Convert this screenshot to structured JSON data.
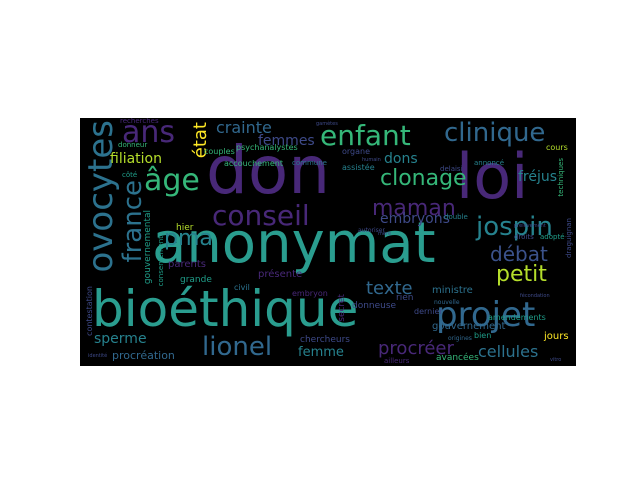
{
  "wordcloud": {
    "words": [
      {
        "id": "anonymat",
        "text": "anonymat",
        "color": "#2a9d8f"
      },
      {
        "id": "bioethique",
        "text": "bioéthique",
        "color": "#2a9d8f"
      },
      {
        "id": "don",
        "text": "don",
        "color": "#482878"
      },
      {
        "id": "loi",
        "text": "loi",
        "color": "#482878"
      },
      {
        "id": "ovocytes",
        "text": "ovocytes",
        "color": "#2c728e"
      },
      {
        "id": "ans",
        "text": "ans",
        "color": "#482878"
      },
      {
        "id": "enfant",
        "text": "enfant",
        "color": "#35b779"
      },
      {
        "id": "clinique",
        "text": "clinique",
        "color": "#31688e"
      },
      {
        "id": "conseil",
        "text": "conseil",
        "color": "#482878"
      },
      {
        "id": "age",
        "text": "âge",
        "color": "#35b779"
      },
      {
        "id": "france",
        "text": "france",
        "color": "#2c728e"
      },
      {
        "id": "clonage",
        "text": "clonage",
        "color": "#35b779"
      },
      {
        "id": "jospin",
        "text": "jospin",
        "color": "#26828e"
      },
      {
        "id": "projet",
        "text": "projet",
        "color": "#31688e"
      },
      {
        "id": "lionel",
        "text": "lionel",
        "color": "#31688e"
      },
      {
        "id": "maman",
        "text": "maman",
        "color": "#482878"
      },
      {
        "id": "petit",
        "text": "petit",
        "color": "#b5de2b"
      },
      {
        "id": "debat",
        "text": "débat",
        "color": "#3b528b"
      },
      {
        "id": "pma",
        "text": "pma",
        "color": "#26828e"
      },
      {
        "id": "etat",
        "text": "état",
        "color": "#fde725"
      },
      {
        "id": "filiation",
        "text": "filiation",
        "color": "#b5de2b"
      },
      {
        "id": "crainte",
        "text": "crainte",
        "color": "#31688e"
      },
      {
        "id": "femmes",
        "text": "femmes",
        "color": "#3e4a89"
      },
      {
        "id": "embryons",
        "text": "embryons",
        "color": "#3e4a89"
      },
      {
        "id": "dons",
        "text": "dons",
        "color": "#26828e"
      },
      {
        "id": "texte",
        "text": "texte",
        "color": "#31688e"
      },
      {
        "id": "sperme",
        "text": "sperme",
        "color": "#26828e"
      },
      {
        "id": "procreer",
        "text": "procréer",
        "color": "#482878"
      },
      {
        "id": "cellules",
        "text": "cellules",
        "color": "#2c728e"
      },
      {
        "id": "femme",
        "text": "femme",
        "color": "#26828e"
      },
      {
        "id": "frejus",
        "text": "fréjus",
        "color": "#26828e"
      },
      {
        "id": "procreation",
        "text": "procréation",
        "color": "#31688e"
      },
      {
        "id": "gouvernemental",
        "text": "gouvernemental",
        "color": "#1f9e89"
      },
      {
        "id": "hier",
        "text": "hier",
        "color": "#b5de2b"
      },
      {
        "id": "parents",
        "text": "parents",
        "color": "#482878"
      },
      {
        "id": "grande",
        "text": "grande",
        "color": "#1f9e89"
      },
      {
        "id": "presente",
        "text": "présente",
        "color": "#482878"
      },
      {
        "id": "ministre",
        "text": "ministre",
        "color": "#2c728e"
      },
      {
        "id": "gouvernement",
        "text": "gouvernement",
        "color": "#31688e"
      },
      {
        "id": "jours",
        "text": "jours",
        "color": "#fde725"
      },
      {
        "id": "secret",
        "text": "secret",
        "color": "#482878"
      },
      {
        "id": "donneuse",
        "text": "donneuse",
        "color": "#3e4a89"
      },
      {
        "id": "rien",
        "text": "rien",
        "color": "#3e4a89"
      },
      {
        "id": "civil",
        "text": "civil",
        "color": "#2c728e"
      },
      {
        "id": "embryon",
        "text": "embryon",
        "color": "#482878"
      },
      {
        "id": "chercheurs",
        "text": "chercheurs",
        "color": "#3e4a89"
      },
      {
        "id": "avancees",
        "text": "avancées",
        "color": "#35b779"
      },
      {
        "id": "amendements",
        "text": "amendements",
        "color": "#1f9e89"
      },
      {
        "id": "bien",
        "text": "bien",
        "color": "#1f9e89"
      },
      {
        "id": "psychanalystes",
        "text": "psychanalystes",
        "color": "#35b779"
      },
      {
        "id": "couples",
        "text": "couples",
        "color": "#35b779"
      },
      {
        "id": "accouchement",
        "text": "accouchement",
        "color": "#35b779"
      },
      {
        "id": "commune",
        "text": "commune",
        "color": "#2c728e"
      },
      {
        "id": "dernier",
        "text": "dernier",
        "color": "#3e4a89"
      },
      {
        "id": "cours",
        "text": "cours",
        "color": "#b5de2b"
      },
      {
        "id": "assistee",
        "text": "assistée",
        "color": "#26828e"
      },
      {
        "id": "organe",
        "text": "organe",
        "color": "#3e4a89"
      },
      {
        "id": "recherches",
        "text": "recherches",
        "color": "#482878"
      },
      {
        "id": "consentement",
        "text": "consentement",
        "color": "#1f9e89"
      },
      {
        "id": "contestation",
        "text": "contestation",
        "color": "#3e4a89"
      },
      {
        "id": "donneur",
        "text": "donneur",
        "color": "#35b779"
      },
      {
        "id": "cote",
        "text": "côté",
        "color": "#1f9e89"
      },
      {
        "id": "techniques",
        "text": "techniques",
        "color": "#35b779"
      },
      {
        "id": "draguignan",
        "text": "draguignan",
        "color": "#3e4a89"
      },
      {
        "id": "adopte",
        "text": "adopté",
        "color": "#1f9e89"
      },
      {
        "id": "droits",
        "text": "droits",
        "color": "#3e4a89"
      },
      {
        "id": "annonce",
        "text": "annoncé",
        "color": "#26828e"
      },
      {
        "id": "delaisi",
        "text": "delaisi",
        "color": "#3e4a89"
      },
      {
        "id": "double",
        "text": "double",
        "color": "#26828e"
      },
      {
        "id": "autoriser",
        "text": "autoriser",
        "color": "#3e4a89"
      },
      {
        "id": "ailleurs",
        "text": "ailleurs",
        "color": "#482878"
      },
      {
        "id": "origines",
        "text": "origines",
        "color": "#31688e"
      },
      {
        "id": "nouvelle",
        "text": "nouvelle",
        "color": "#31688e"
      },
      {
        "id": "gametes",
        "text": "gamètes",
        "color": "#3e4a89"
      },
      {
        "id": "humain",
        "text": "humain",
        "color": "#3e4a89"
      },
      {
        "id": "mere",
        "text": "mère",
        "color": "#3e4a89"
      },
      {
        "id": "prelevement",
        "text": "prélèvement",
        "color": "#3e4a89"
      },
      {
        "id": "fecondation",
        "text": "fécondation",
        "color": "#3e4a89"
      },
      {
        "id": "vitro",
        "text": "vitro",
        "color": "#3e4a89"
      },
      {
        "id": "identite",
        "text": "identité",
        "color": "#3e4a89"
      }
    ]
  }
}
